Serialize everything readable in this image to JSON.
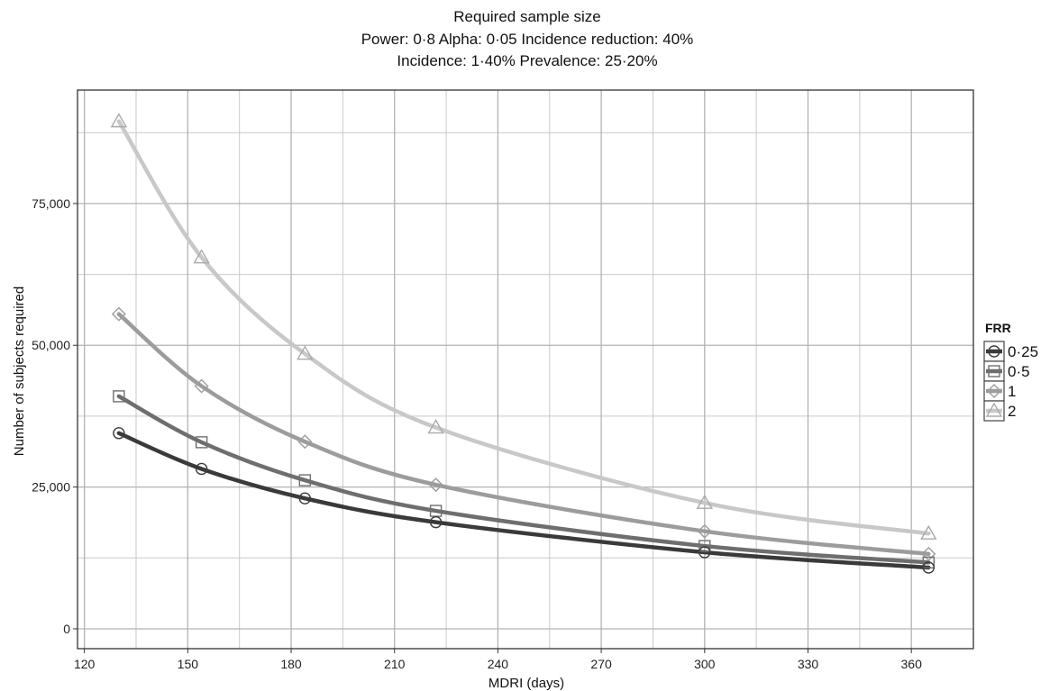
{
  "chart_data": {
    "type": "line",
    "title": "Required sample size",
    "subtitle_lines": [
      "Power: 0·8 Alpha: 0·05 Incidence reduction: 40%",
      "Incidence: 1·40% Prevalence: 25·20%"
    ],
    "xlabel": "MDRI (days)",
    "ylabel": "Number of subjects required",
    "xlim": [
      118,
      378
    ],
    "ylim": [
      -3500,
      95000
    ],
    "x_ticks": [
      120,
      150,
      180,
      210,
      240,
      270,
      300,
      330,
      360
    ],
    "x_tick_labels": [
      "120",
      "150",
      "180",
      "210",
      "240",
      "270",
      "300",
      "330",
      "360"
    ],
    "x_minor_grid": [
      135,
      165,
      195,
      225,
      255,
      285,
      315,
      345
    ],
    "y_ticks": [
      0,
      25000,
      50000,
      75000
    ],
    "y_tick_labels": [
      "0",
      "25,000",
      "50,000",
      "75,000"
    ],
    "y_minor_grid": [
      12500,
      37500,
      62500,
      87500
    ],
    "grid": true,
    "legend": {
      "title": "FRR",
      "position": "right"
    },
    "series": [
      {
        "name": "0·25",
        "color": "#3a3a3a",
        "marker": "circle",
        "x": [
          130,
          154,
          184,
          222,
          300,
          365
        ],
        "y": [
          34500,
          28200,
          23000,
          18800,
          13500,
          10800
        ]
      },
      {
        "name": "0·5",
        "color": "#6e6e6e",
        "marker": "square",
        "x": [
          130,
          154,
          184,
          222,
          300,
          365
        ],
        "y": [
          41000,
          32900,
          26200,
          20800,
          14600,
          11700
        ]
      },
      {
        "name": "1",
        "color": "#9c9c9c",
        "marker": "diamond",
        "x": [
          130,
          154,
          184,
          222,
          300,
          365
        ],
        "y": [
          55500,
          42800,
          33000,
          25400,
          17200,
          13200
        ]
      },
      {
        "name": "2",
        "color": "#c8c8c8",
        "marker": "triangle",
        "x": [
          130,
          154,
          184,
          222,
          300,
          365
        ],
        "y": [
          89500,
          65500,
          48500,
          35500,
          22200,
          16800
        ]
      }
    ]
  }
}
